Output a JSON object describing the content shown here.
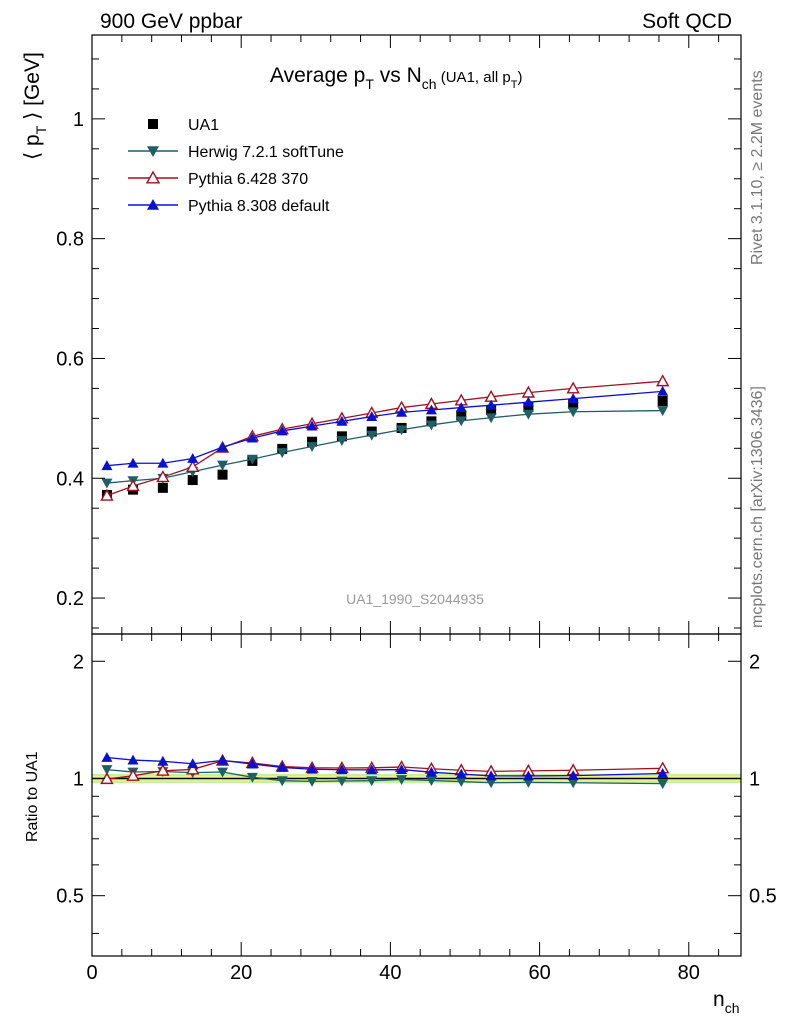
{
  "header": {
    "left": "900 GeV ppbar",
    "right": "Soft QCD"
  },
  "side_labels": {
    "version": "Rivet 3.1.10, ≥ 2.2M events",
    "source": "mcplots.cern.ch [arXiv:1306.3436]"
  },
  "colors": {
    "data": "#000000",
    "herwig": "#1f5f66",
    "pythia6": "#a01020",
    "pythia8": "#0a10d0",
    "band_inner": "#f3f38a",
    "band_outer": "#c4f2a0"
  },
  "chart_data": [
    {
      "type": "scatter",
      "title": {
        "main": "Average p",
        "sub1": "T",
        "mid": " vs N",
        "sub2": "ch",
        "tail": " (UA1, all p",
        "sub3": "T",
        "close": ")"
      },
      "ylabel": {
        "pre": "⟨ p",
        "sub": "T",
        "post": " ⟩ [GeV]"
      },
      "watermark": "UA1_1990_S2044935",
      "xlim": [
        0,
        87
      ],
      "ylim": [
        0.14,
        1.14
      ],
      "yticks": [
        0.2,
        0.4,
        0.6,
        0.8,
        1
      ],
      "ytick_labels": [
        "0.2",
        "0.4",
        "0.6",
        "0.8",
        "1"
      ],
      "legend_position": "top-left",
      "x": [
        2,
        5.5,
        9.5,
        13.5,
        17.5,
        21.5,
        25.5,
        29.5,
        33.5,
        37.5,
        41.5,
        45.5,
        49.5,
        53.5,
        58.5,
        64.5,
        76.5
      ],
      "series": [
        {
          "name": "UA1",
          "key": "data",
          "marker": "square",
          "values": [
            0.372,
            0.381,
            0.384,
            0.397,
            0.406,
            0.429,
            0.449,
            0.461,
            0.47,
            0.478,
            0.484,
            0.495,
            0.505,
            0.514,
            0.519,
            0.524,
            0.529
          ]
        },
        {
          "name": "Herwig 7.2.1 softTune",
          "key": "herwig",
          "marker": "triangle-down",
          "values": [
            0.392,
            0.396,
            0.4,
            0.411,
            0.422,
            0.432,
            0.443,
            0.453,
            0.463,
            0.472,
            0.481,
            0.489,
            0.496,
            0.501,
            0.507,
            0.511,
            0.513
          ]
        },
        {
          "name": "Pythia 6.428 370",
          "key": "pythia6",
          "marker": "triangle-open",
          "values": [
            0.371,
            0.387,
            0.402,
            0.419,
            0.451,
            0.47,
            0.482,
            0.491,
            0.5,
            0.509,
            0.518,
            0.524,
            0.53,
            0.536,
            0.543,
            0.55,
            0.562
          ]
        },
        {
          "name": "Pythia 8.308 default",
          "key": "pythia8",
          "marker": "triangle-up",
          "values": [
            0.421,
            0.425,
            0.425,
            0.433,
            0.452,
            0.467,
            0.479,
            0.487,
            0.495,
            0.503,
            0.51,
            0.514,
            0.518,
            0.522,
            0.527,
            0.533,
            0.545
          ]
        }
      ]
    },
    {
      "type": "scatter",
      "ylabel": "Ratio to UA1",
      "xlabel": {
        "main": "n",
        "sub": "ch"
      },
      "xlim": [
        0,
        87
      ],
      "ylim": [
        0.35,
        2.35
      ],
      "yticks": [
        0.5,
        1,
        2
      ],
      "ytick_labels": [
        "0.5",
        "1",
        "2"
      ],
      "xticks": [
        0,
        20,
        40,
        60,
        80
      ],
      "xtick_labels": [
        "0",
        "20",
        "40",
        "60",
        "80"
      ],
      "series": [
        {
          "name": "Herwig 7.2.1 softTune",
          "key": "herwig",
          "marker": "triangle-down",
          "values": [
            1.054,
            1.039,
            1.042,
            1.035,
            1.039,
            1.007,
            0.987,
            0.983,
            0.985,
            0.987,
            0.994,
            0.988,
            0.982,
            0.975,
            0.977,
            0.975,
            0.97
          ]
        },
        {
          "name": "Pythia 6.428 370",
          "key": "pythia6",
          "marker": "triangle-open",
          "values": [
            0.997,
            1.016,
            1.047,
            1.055,
            1.111,
            1.096,
            1.073,
            1.065,
            1.064,
            1.065,
            1.07,
            1.059,
            1.05,
            1.043,
            1.046,
            1.05,
            1.062
          ]
        },
        {
          "name": "Pythia 8.308 default",
          "key": "pythia8",
          "marker": "triangle-up",
          "values": [
            1.132,
            1.115,
            1.107,
            1.091,
            1.113,
            1.089,
            1.067,
            1.056,
            1.053,
            1.052,
            1.054,
            1.038,
            1.026,
            1.016,
            1.015,
            1.017,
            1.03
          ]
        }
      ]
    }
  ]
}
